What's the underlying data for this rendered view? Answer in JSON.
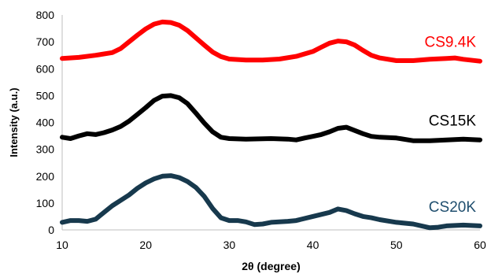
{
  "chart_data": {
    "type": "line",
    "title": "",
    "xlabel": "2θ (degree)",
    "ylabel": "Intensity (a.u.)",
    "xlim": [
      10,
      60
    ],
    "ylim": [
      0,
      800
    ],
    "xticks": [
      10,
      20,
      30,
      40,
      50,
      60
    ],
    "yticks": [
      0,
      100,
      200,
      300,
      400,
      500,
      600,
      700,
      800
    ],
    "grid": false,
    "legend": "labels at right end of each series",
    "series": [
      {
        "name": "CS9.4K",
        "color": "#ff0000",
        "label_color": "#ff0000",
        "points": [
          [
            10,
            638
          ],
          [
            12,
            642
          ],
          [
            14,
            650
          ],
          [
            16,
            660
          ],
          [
            17,
            675
          ],
          [
            18,
            700
          ],
          [
            19,
            725
          ],
          [
            20,
            748
          ],
          [
            21,
            766
          ],
          [
            22,
            774
          ],
          [
            23,
            772
          ],
          [
            24,
            762
          ],
          [
            25,
            742
          ],
          [
            26,
            715
          ],
          [
            27,
            688
          ],
          [
            28,
            662
          ],
          [
            29,
            645
          ],
          [
            30,
            636
          ],
          [
            32,
            632
          ],
          [
            34,
            632
          ],
          [
            36,
            636
          ],
          [
            38,
            646
          ],
          [
            40,
            664
          ],
          [
            41,
            680
          ],
          [
            42,
            695
          ],
          [
            43,
            703
          ],
          [
            44,
            700
          ],
          [
            45,
            688
          ],
          [
            46,
            668
          ],
          [
            47,
            650
          ],
          [
            48,
            640
          ],
          [
            50,
            630
          ],
          [
            52,
            630
          ],
          [
            54,
            635
          ],
          [
            56,
            638
          ],
          [
            57,
            640
          ],
          [
            58,
            635
          ],
          [
            60,
            628
          ]
        ]
      },
      {
        "name": "CS15K",
        "color": "#000000",
        "label_color": "#000000",
        "points": [
          [
            10,
            345
          ],
          [
            11,
            340
          ],
          [
            12,
            350
          ],
          [
            13,
            358
          ],
          [
            14,
            355
          ],
          [
            15,
            362
          ],
          [
            16,
            372
          ],
          [
            17,
            385
          ],
          [
            18,
            405
          ],
          [
            19,
            430
          ],
          [
            20,
            455
          ],
          [
            21,
            482
          ],
          [
            22,
            498
          ],
          [
            23,
            500
          ],
          [
            24,
            492
          ],
          [
            25,
            470
          ],
          [
            26,
            435
          ],
          [
            27,
            398
          ],
          [
            28,
            365
          ],
          [
            29,
            345
          ],
          [
            30,
            340
          ],
          [
            32,
            338
          ],
          [
            35,
            340
          ],
          [
            37,
            338
          ],
          [
            38,
            335
          ],
          [
            39,
            342
          ],
          [
            40,
            348
          ],
          [
            41,
            355
          ],
          [
            42,
            365
          ],
          [
            43,
            378
          ],
          [
            44,
            382
          ],
          [
            45,
            370
          ],
          [
            46,
            358
          ],
          [
            47,
            348
          ],
          [
            48,
            345
          ],
          [
            50,
            342
          ],
          [
            52,
            332
          ],
          [
            54,
            332
          ],
          [
            56,
            335
          ],
          [
            58,
            338
          ],
          [
            60,
            335
          ]
        ]
      },
      {
        "name": "CS20K",
        "color": "#17394d",
        "label_color": "#1f4e6e",
        "points": [
          [
            10,
            28
          ],
          [
            11,
            35
          ],
          [
            12,
            35
          ],
          [
            13,
            32
          ],
          [
            14,
            40
          ],
          [
            15,
            65
          ],
          [
            16,
            90
          ],
          [
            17,
            110
          ],
          [
            18,
            130
          ],
          [
            19,
            155
          ],
          [
            20,
            175
          ],
          [
            21,
            190
          ],
          [
            22,
            200
          ],
          [
            23,
            202
          ],
          [
            24,
            195
          ],
          [
            25,
            180
          ],
          [
            26,
            158
          ],
          [
            27,
            125
          ],
          [
            28,
            80
          ],
          [
            29,
            45
          ],
          [
            30,
            35
          ],
          [
            31,
            35
          ],
          [
            32,
            30
          ],
          [
            33,
            20
          ],
          [
            34,
            22
          ],
          [
            35,
            28
          ],
          [
            36,
            30
          ],
          [
            37,
            32
          ],
          [
            38,
            35
          ],
          [
            40,
            50
          ],
          [
            42,
            65
          ],
          [
            43,
            78
          ],
          [
            44,
            72
          ],
          [
            45,
            60
          ],
          [
            46,
            50
          ],
          [
            47,
            45
          ],
          [
            48,
            38
          ],
          [
            50,
            28
          ],
          [
            52,
            22
          ],
          [
            54,
            8
          ],
          [
            55,
            10
          ],
          [
            56,
            15
          ],
          [
            58,
            18
          ],
          [
            60,
            15
          ]
        ]
      }
    ]
  }
}
